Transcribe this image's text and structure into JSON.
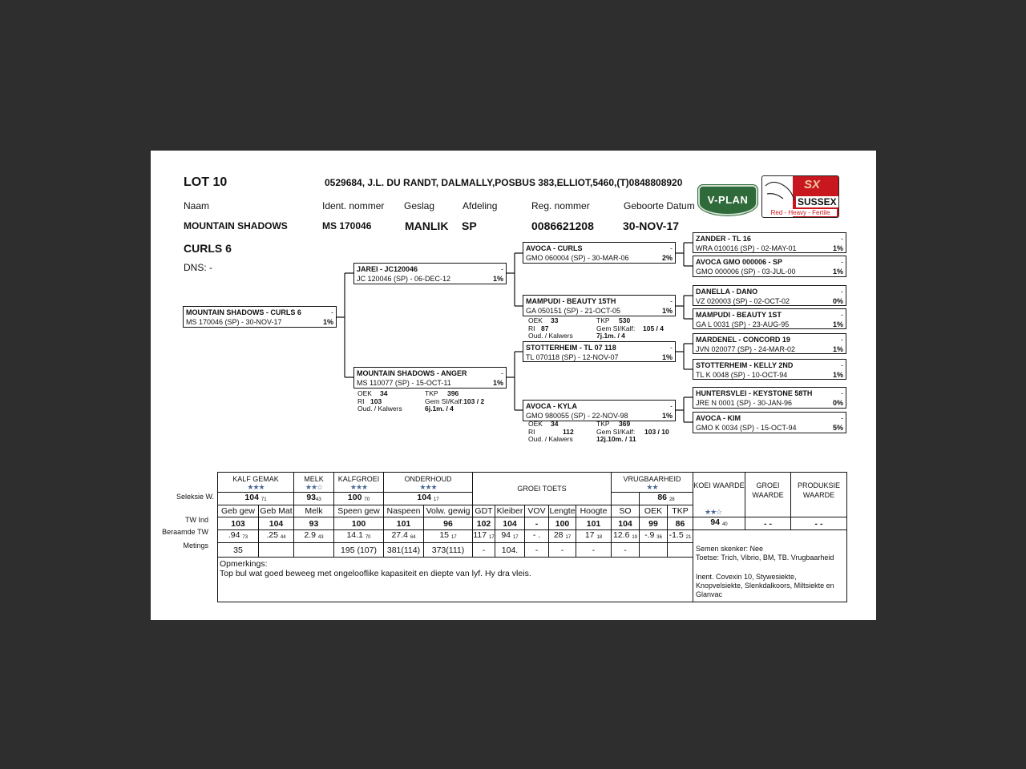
{
  "header": {
    "lot": "LOT 10",
    "owner": "0529684, J.L. DU RANDT, DALMALLY,POSBUS 383,ELLIOT,5460,(T)0848808920",
    "labels": {
      "name": "Naam",
      "ident": "Ident. nommer",
      "sex": "Geslag",
      "section": "Afdeling",
      "reg": "Reg. nommer",
      "dob": "Geboorte Datum"
    },
    "values": {
      "name": "MOUNTAIN SHADOWS",
      "name2": "CURLS 6",
      "ident": "MS  170046",
      "sex": "MANLIK",
      "section": "SP",
      "reg": "0086621208",
      "dob": "30-NOV-17"
    },
    "dns": "DNS: -"
  },
  "logos": {
    "vplan": "V-PLAN",
    "sussex": "SUSSEX",
    "sussex_mark": "SX",
    "sussex_tag": "Red - Heavy - Fertile",
    "vplan_color": "#2f6b3a",
    "sussex_color": "#c8171e"
  },
  "pedigree": {
    "subject": {
      "name": "MOUNTAIN SHADOWS -  CURLS 6",
      "flag": "-",
      "id": "MS  170046 (SP) - 30-NOV-17",
      "pct": "1%"
    },
    "sire": {
      "name": "JAREI -  JC120046",
      "flag": "-",
      "id": "JC  120046 (SP) - 06-DEC-12",
      "pct": "1%"
    },
    "dam": {
      "name": "MOUNTAIN SHADOWS -  ANGER",
      "flag": "-",
      "id": "MS  110077 (SP) - 15-OCT-11",
      "pct": "1%",
      "stats": {
        "oek_l": "OEK",
        "oek": "34",
        "tkp_l": "TKP",
        "tkp": "396",
        "ri_l": "RI",
        "ri": "103",
        "gem_l": "Gem SI/Kalf:",
        "gem": "103 / 2",
        "oud_l": "Oud. / Kalwers",
        "oud": "6j.1m. / 4"
      }
    },
    "ss": {
      "name": "AVOCA -  CURLS",
      "flag": "-",
      "id": "GMO 060004 (SP) - 30-MAR-06",
      "pct": "2%"
    },
    "sd": {
      "name": "MAMPUDI -  BEAUTY 15TH",
      "flag": "-",
      "id": "GA  050151 (SP) - 21-OCT-05",
      "pct": "1%",
      "stats": {
        "oek_l": "OEK",
        "oek": "33",
        "tkp_l": "TKP",
        "tkp": "530",
        "ri_l": "RI",
        "ri": "87",
        "gem_l": "Gem SI/Kalf:",
        "gem": "105 / 4",
        "oud_l": "Oud. / Kalwers",
        "oud": "7j.1m. / 4"
      }
    },
    "ds": {
      "name": "STOTTERHEIM -  TL 07 118",
      "flag": "-",
      "id": "TL  070118 (SP) - 12-NOV-07",
      "pct": "1%"
    },
    "dd": {
      "name": "AVOCA -  KYLA",
      "flag": "-",
      "id": "GMO 980055 (SP) - 22-NOV-98",
      "pct": "1%",
      "stats": {
        "oek_l": "OEK",
        "oek": "34",
        "tkp_l": "TKP",
        "tkp": "369",
        "ri_l": "RI",
        "ri": "112",
        "gem_l": "Gem SI/Kalf:",
        "gem": "103 / 10",
        "oud_l": "Oud. / Kalwers",
        "oud": "12j.10m. / 11"
      }
    },
    "g3": [
      {
        "name": "ZANDER -  TL 16",
        "flag": "-",
        "id": "WRA 010016 (SP) - 02-MAY-01",
        "pct": "1%"
      },
      {
        "name": "AVOCA GMO 000006 - SP",
        "flag": "-",
        "id": "GMO 000006 (SP) - 03-JUL-00",
        "pct": "1%"
      },
      {
        "name": "DANELLA -  DANO",
        "flag": "-",
        "id": "VZ  020003 (SP) - 02-OCT-02",
        "pct": "0%"
      },
      {
        "name": "MAMPUDI -  BEAUTY 1ST",
        "flag": "-",
        "id": "GA  L 0031 (SP) - 23-AUG-95",
        "pct": "1%"
      },
      {
        "name": "MARDENEL -  CONCORD 19",
        "flag": "-",
        "id": "JVN 020077 (SP) - 24-MAR-02",
        "pct": "1%"
      },
      {
        "name": "STOTTERHEIM -  KELLY 2ND",
        "flag": "-",
        "id": "TL  K 0048 (SP) - 10-OCT-94",
        "pct": "1%"
      },
      {
        "name": "HUNTERSVLEI -  KEYSTONE 58TH",
        "flag": "-",
        "id": "JRE N 0001 (SP) - 30-JAN-96",
        "pct": "0%"
      },
      {
        "name": "AVOCA -  KIM",
        "flag": "-",
        "id": "GMO K 0034 (SP) - 15-OCT-94",
        "pct": "5%"
      }
    ]
  },
  "table": {
    "row_labels": [
      "Seleksie W.",
      "TW Ind",
      "Beraamde TW",
      "Metings"
    ],
    "groups": {
      "kalf_gemak": "KALF GEMAK",
      "melk": "MELK",
      "kalfgroei": "KALFGROEI",
      "onderhoud": "ONDERHOUD",
      "groei_toets": "GROEI TOETS",
      "vrugbaarheid": "VRUGBAARHEID",
      "koei_waarde": "KOEI WAARDE",
      "groei_waarde": "GROEI WAARDE",
      "produksie_waarde": "PRODUKSIE WAARDE"
    },
    "stars": {
      "kalf_gemak": "★★★",
      "melk": "★★☆",
      "kalfgroei": "★★★",
      "onderhoud": "★★★",
      "vrugbaarheid": "★★",
      "koei_waarde": "★★☆"
    },
    "seleksie": {
      "kalf_gemak": "104",
      "kalf_gemak_acc": "71",
      "melk": "93",
      "melk_acc": "43",
      "kalfgroei": "100",
      "kalfgroei_acc": "70",
      "onderhoud": "104",
      "onderhoud_acc": "17",
      "vrugbaarheid": "86",
      "vrugbaarheid_acc": "28"
    },
    "columns": [
      "Geb gew",
      "Geb Mat",
      "Melk",
      "Speen gew",
      "Naspeen",
      "Volw. gewig",
      "GDT",
      "Kleiber",
      "VOV",
      "Lengte",
      "Hoogte",
      "SO",
      "OEK",
      "TKP"
    ],
    "tw_ind": [
      "103",
      "104",
      "93",
      "100",
      "101",
      "96",
      "102",
      "104",
      "-",
      "100",
      "101",
      "104",
      "99",
      "86"
    ],
    "beraamde": [
      [
        ".94",
        "73"
      ],
      [
        ".25",
        "44"
      ],
      [
        "2.9",
        "43"
      ],
      [
        "14.1",
        "70"
      ],
      [
        "27.4",
        "64"
      ],
      [
        "15",
        "17"
      ],
      [
        "117",
        "17"
      ],
      [
        "94",
        "17"
      ],
      [
        "- .",
        ""
      ],
      [
        "28",
        "17"
      ],
      [
        "17",
        "18"
      ],
      [
        "12.6",
        "19"
      ],
      [
        "-.9",
        "36"
      ],
      [
        "-1.5",
        "21"
      ]
    ],
    "metings": [
      "35",
      "",
      "",
      "195 (107)",
      "381(114)",
      "373(111)",
      "-",
      "104.",
      "-",
      "-",
      "-",
      "-",
      "",
      ""
    ],
    "koei_waarde": "94",
    "koei_waarde_acc": "40",
    "groei_waarde": "- -",
    "produksie_waarde": "- -",
    "opmerkings_label": "Opmerkings:",
    "opmerkings": "Top bul wat goed beweeg met ongelooflike kapasiteit en diepte van lyf. Hy dra vleis.",
    "semen": "Semen skenker: Nee",
    "toetse": "Toetse: Trich, Vibrio, BM, TB. Vrugbaarheid",
    "inent": "Inent. Covexin 10, Stywesiekte, Knopvelsiekte, Slenkdalkoors, Miltsiekte en Glanvac"
  }
}
